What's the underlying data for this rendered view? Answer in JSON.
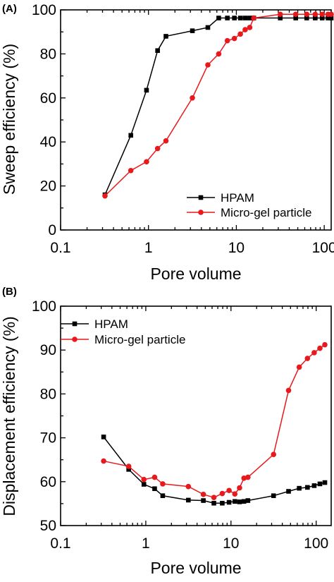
{
  "chart_data": [
    {
      "panel_label": "(A)",
      "type": "line",
      "x_scale": "log",
      "xlim": [
        0.1,
        120
      ],
      "ylim": [
        0,
        100
      ],
      "xticks": [
        0.1,
        1,
        10,
        100
      ],
      "xtick_labels": [
        "0.1",
        "1",
        "10",
        "100"
      ],
      "yticks": [
        0,
        20,
        40,
        60,
        80,
        100
      ],
      "ytick_labels": [
        "0",
        "20",
        "40",
        "60",
        "80",
        "100"
      ],
      "xlabel": "Pore volume",
      "ylabel": "Sweep efficiency (%)",
      "legend_position": "bottom-right",
      "grid": false,
      "series": [
        {
          "name": "HPAM",
          "color": "#000000",
          "marker": "square",
          "x": [
            0.32,
            0.63,
            0.95,
            1.27,
            1.58,
            3.16,
            4.74,
            6.3,
            7.9,
            9.5,
            11.1,
            12.6,
            14.2,
            15.8,
            31.6,
            47.4,
            63.2,
            79,
            94.8,
            110.6,
            120
          ],
          "y": [
            16,
            43,
            63.5,
            81.5,
            88,
            90.5,
            92,
            96.3,
            96.3,
            96.3,
            96.3,
            96.3,
            96.3,
            96.3,
            96.3,
            96.3,
            96.3,
            96.3,
            96.3,
            96.3,
            96.3
          ]
        },
        {
          "name": "Micro-gel particle",
          "color": "#e8191c",
          "marker": "circle",
          "x": [
            0.32,
            0.63,
            0.95,
            1.27,
            1.58,
            3.16,
            4.74,
            6.3,
            7.9,
            9.5,
            11.1,
            12.6,
            14.2,
            15.8,
            31.6,
            47.4,
            63.2,
            79,
            94.8,
            110.6,
            120
          ],
          "y": [
            15.5,
            27,
            31,
            37,
            40.5,
            60,
            75,
            80,
            86,
            87,
            89,
            91,
            92,
            96.3,
            98,
            98,
            98,
            98,
            98,
            98,
            98
          ]
        }
      ]
    },
    {
      "panel_label": "(B)",
      "type": "line",
      "x_scale": "log",
      "xlim": [
        0.1,
        150
      ],
      "ylim": [
        50,
        100
      ],
      "xticks": [
        0.1,
        1,
        10,
        100
      ],
      "xtick_labels": [
        "0.1",
        "1",
        "10",
        "100"
      ],
      "yticks": [
        50,
        60,
        70,
        80,
        90,
        100
      ],
      "ytick_labels": [
        "50",
        "60",
        "70",
        "80",
        "90",
        "100"
      ],
      "xlabel": "Pore volume",
      "ylabel": "Displacement efficiency (%)",
      "legend_position": "top-left",
      "grid": false,
      "series": [
        {
          "name": "HPAM",
          "color": "#000000",
          "marker": "square",
          "x": [
            0.32,
            0.63,
            0.95,
            1.27,
            1.58,
            3.16,
            4.74,
            6.3,
            7.9,
            9.5,
            11.1,
            12.6,
            14.2,
            15.8,
            31.6,
            47.4,
            63.2,
            79,
            94.8,
            110.6,
            126.4
          ],
          "y": [
            70.2,
            62.8,
            59.4,
            58.4,
            56.8,
            55.8,
            55.7,
            55.1,
            55.1,
            55.3,
            55.5,
            55.4,
            55.5,
            55.7,
            56.8,
            57.8,
            58.5,
            58.7,
            59.1,
            59.5,
            59.8
          ]
        },
        {
          "name": "Micro-gel particle",
          "color": "#e8191c",
          "marker": "circle",
          "x": [
            0.32,
            0.63,
            0.95,
            1.27,
            1.58,
            3.16,
            4.74,
            6.3,
            7.9,
            9.5,
            11.1,
            12.6,
            14.2,
            15.8,
            31.6,
            47.4,
            63.2,
            79,
            94.8,
            110.6,
            126.4
          ],
          "y": [
            64.7,
            63.5,
            60.5,
            61,
            59.5,
            58.9,
            57.1,
            56.4,
            57.3,
            58,
            57.2,
            58.6,
            60.8,
            61,
            66.2,
            80.8,
            86.1,
            88.1,
            89.4,
            90.4,
            91.2
          ]
        }
      ]
    }
  ]
}
